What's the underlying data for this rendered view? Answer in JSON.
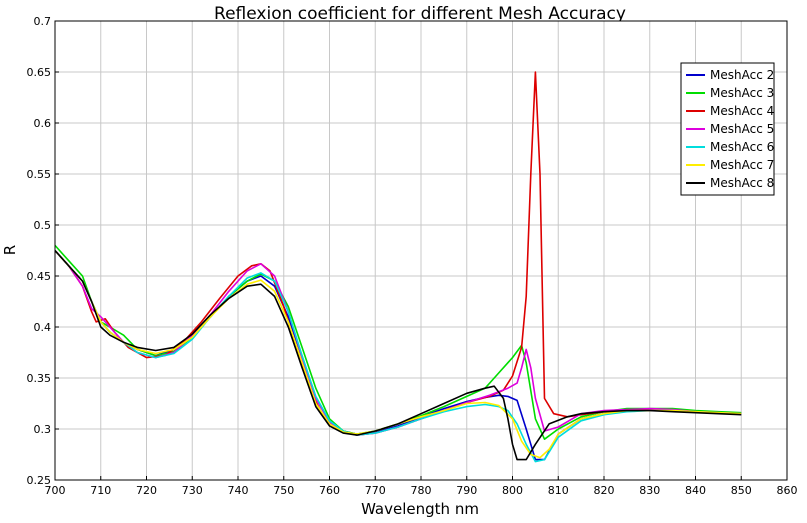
{
  "chart_data": {
    "type": "line",
    "title": "Reflexion coefficient for different Mesh Accuracy",
    "xlabel": "Wavelength nm",
    "ylabel": "R",
    "xlim": [
      700,
      860
    ],
    "ylim": [
      0.25,
      0.7
    ],
    "xticks": [
      "700",
      "710",
      "720",
      "730",
      "740",
      "750",
      "760",
      "770",
      "780",
      "790",
      "800",
      "810",
      "820",
      "830",
      "840",
      "850",
      "860"
    ],
    "yticks": [
      "0.25",
      "0.3",
      "0.35",
      "0.4",
      "0.45",
      "0.5",
      "0.55",
      "0.6",
      "0.65",
      "0.7"
    ],
    "grid": true,
    "legend_position": "top-right",
    "series": [
      {
        "name": "MeshAcc 2",
        "color": "#0000cc",
        "points": [
          [
            700,
            0.475
          ],
          [
            703,
            0.46
          ],
          [
            706,
            0.445
          ],
          [
            708,
            0.425
          ],
          [
            710,
            0.405
          ],
          [
            712,
            0.395
          ],
          [
            715,
            0.385
          ],
          [
            718,
            0.378
          ],
          [
            722,
            0.372
          ],
          [
            726,
            0.378
          ],
          [
            730,
            0.39
          ],
          [
            734,
            0.41
          ],
          [
            738,
            0.43
          ],
          [
            742,
            0.445
          ],
          [
            745,
            0.45
          ],
          [
            748,
            0.44
          ],
          [
            751,
            0.41
          ],
          [
            754,
            0.37
          ],
          [
            757,
            0.33
          ],
          [
            760,
            0.307
          ],
          [
            763,
            0.298
          ],
          [
            766,
            0.295
          ],
          [
            770,
            0.297
          ],
          [
            775,
            0.303
          ],
          [
            780,
            0.312
          ],
          [
            785,
            0.32
          ],
          [
            790,
            0.327
          ],
          [
            794,
            0.331
          ],
          [
            797,
            0.333
          ],
          [
            799,
            0.332
          ],
          [
            801,
            0.328
          ],
          [
            803,
            0.3
          ],
          [
            805,
            0.27
          ],
          [
            807,
            0.27
          ],
          [
            810,
            0.295
          ],
          [
            815,
            0.31
          ],
          [
            820,
            0.315
          ],
          [
            825,
            0.318
          ],
          [
            830,
            0.318
          ],
          [
            835,
            0.318
          ],
          [
            840,
            0.317
          ],
          [
            845,
            0.316
          ],
          [
            850,
            0.315
          ]
        ]
      },
      {
        "name": "MeshAcc 3",
        "color": "#00dd00",
        "points": [
          [
            700,
            0.48
          ],
          [
            703,
            0.465
          ],
          [
            706,
            0.45
          ],
          [
            708,
            0.425
          ],
          [
            710,
            0.405
          ],
          [
            712,
            0.4
          ],
          [
            715,
            0.392
          ],
          [
            718,
            0.378
          ],
          [
            722,
            0.372
          ],
          [
            726,
            0.376
          ],
          [
            730,
            0.39
          ],
          [
            734,
            0.41
          ],
          [
            738,
            0.43
          ],
          [
            742,
            0.445
          ],
          [
            745,
            0.452
          ],
          [
            748,
            0.445
          ],
          [
            751,
            0.42
          ],
          [
            754,
            0.38
          ],
          [
            757,
            0.34
          ],
          [
            760,
            0.31
          ],
          [
            763,
            0.298
          ],
          [
            766,
            0.295
          ],
          [
            770,
            0.298
          ],
          [
            775,
            0.305
          ],
          [
            780,
            0.313
          ],
          [
            785,
            0.322
          ],
          [
            790,
            0.332
          ],
          [
            794,
            0.34
          ],
          [
            797,
            0.355
          ],
          [
            800,
            0.37
          ],
          [
            802,
            0.382
          ],
          [
            803,
            0.365
          ],
          [
            805,
            0.31
          ],
          [
            807,
            0.29
          ],
          [
            810,
            0.3
          ],
          [
            815,
            0.312
          ],
          [
            820,
            0.317
          ],
          [
            825,
            0.32
          ],
          [
            830,
            0.32
          ],
          [
            835,
            0.32
          ],
          [
            840,
            0.318
          ],
          [
            845,
            0.317
          ],
          [
            850,
            0.316
          ]
        ]
      },
      {
        "name": "MeshAcc 4",
        "color": "#dd0000",
        "points": [
          [
            700,
            0.475
          ],
          [
            703,
            0.46
          ],
          [
            706,
            0.44
          ],
          [
            708,
            0.415
          ],
          [
            709,
            0.405
          ],
          [
            711,
            0.408
          ],
          [
            713,
            0.395
          ],
          [
            716,
            0.38
          ],
          [
            720,
            0.37
          ],
          [
            724,
            0.372
          ],
          [
            728,
            0.385
          ],
          [
            732,
            0.405
          ],
          [
            736,
            0.428
          ],
          [
            740,
            0.45
          ],
          [
            743,
            0.46
          ],
          [
            745,
            0.462
          ],
          [
            747,
            0.455
          ],
          [
            750,
            0.42
          ],
          [
            753,
            0.375
          ],
          [
            756,
            0.335
          ],
          [
            759,
            0.31
          ],
          [
            762,
            0.299
          ],
          [
            766,
            0.294
          ],
          [
            770,
            0.296
          ],
          [
            775,
            0.302
          ],
          [
            780,
            0.31
          ],
          [
            785,
            0.318
          ],
          [
            790,
            0.326
          ],
          [
            795,
            0.332
          ],
          [
            798,
            0.338
          ],
          [
            800,
            0.352
          ],
          [
            802,
            0.38
          ],
          [
            803,
            0.43
          ],
          [
            804,
            0.55
          ],
          [
            805,
            0.65
          ],
          [
            806,
            0.55
          ],
          [
            807,
            0.33
          ],
          [
            809,
            0.315
          ],
          [
            812,
            0.312
          ],
          [
            815,
            0.314
          ],
          [
            820,
            0.317
          ],
          [
            825,
            0.318
          ],
          [
            830,
            0.319
          ],
          [
            835,
            0.318
          ],
          [
            840,
            0.317
          ],
          [
            845,
            0.316
          ],
          [
            850,
            0.315
          ]
        ]
      },
      {
        "name": "MeshAcc 5",
        "color": "#dd00dd",
        "points": [
          [
            700,
            0.475
          ],
          [
            703,
            0.46
          ],
          [
            706,
            0.44
          ],
          [
            708,
            0.418
          ],
          [
            710,
            0.41
          ],
          [
            712,
            0.4
          ],
          [
            715,
            0.385
          ],
          [
            718,
            0.375
          ],
          [
            722,
            0.37
          ],
          [
            726,
            0.375
          ],
          [
            730,
            0.392
          ],
          [
            734,
            0.412
          ],
          [
            738,
            0.435
          ],
          [
            742,
            0.455
          ],
          [
            745,
            0.462
          ],
          [
            748,
            0.45
          ],
          [
            751,
            0.415
          ],
          [
            754,
            0.37
          ],
          [
            757,
            0.33
          ],
          [
            760,
            0.307
          ],
          [
            763,
            0.297
          ],
          [
            766,
            0.294
          ],
          [
            770,
            0.296
          ],
          [
            775,
            0.302
          ],
          [
            780,
            0.31
          ],
          [
            785,
            0.318
          ],
          [
            790,
            0.326
          ],
          [
            795,
            0.333
          ],
          [
            799,
            0.34
          ],
          [
            801,
            0.345
          ],
          [
            802,
            0.36
          ],
          [
            803,
            0.378
          ],
          [
            804,
            0.36
          ],
          [
            805,
            0.33
          ],
          [
            807,
            0.298
          ],
          [
            810,
            0.302
          ],
          [
            815,
            0.315
          ],
          [
            820,
            0.318
          ],
          [
            825,
            0.319
          ],
          [
            830,
            0.32
          ],
          [
            835,
            0.319
          ],
          [
            840,
            0.317
          ],
          [
            845,
            0.316
          ],
          [
            850,
            0.315
          ]
        ]
      },
      {
        "name": "MeshAcc 6",
        "color": "#00dddd",
        "points": [
          [
            700,
            0.475
          ],
          [
            703,
            0.46
          ],
          [
            706,
            0.445
          ],
          [
            708,
            0.425
          ],
          [
            710,
            0.405
          ],
          [
            712,
            0.395
          ],
          [
            715,
            0.385
          ],
          [
            718,
            0.375
          ],
          [
            722,
            0.37
          ],
          [
            726,
            0.374
          ],
          [
            730,
            0.388
          ],
          [
            734,
            0.41
          ],
          [
            738,
            0.43
          ],
          [
            742,
            0.448
          ],
          [
            745,
            0.453
          ],
          [
            748,
            0.445
          ],
          [
            751,
            0.415
          ],
          [
            754,
            0.372
          ],
          [
            757,
            0.332
          ],
          [
            760,
            0.308
          ],
          [
            763,
            0.298
          ],
          [
            766,
            0.294
          ],
          [
            770,
            0.296
          ],
          [
            775,
            0.302
          ],
          [
            780,
            0.31
          ],
          [
            785,
            0.317
          ],
          [
            790,
            0.322
          ],
          [
            794,
            0.324
          ],
          [
            797,
            0.322
          ],
          [
            799,
            0.318
          ],
          [
            801,
            0.305
          ],
          [
            803,
            0.285
          ],
          [
            805,
            0.268
          ],
          [
            807,
            0.27
          ],
          [
            810,
            0.292
          ],
          [
            815,
            0.308
          ],
          [
            820,
            0.314
          ],
          [
            825,
            0.317
          ],
          [
            830,
            0.318
          ],
          [
            835,
            0.318
          ],
          [
            840,
            0.317
          ],
          [
            845,
            0.316
          ],
          [
            850,
            0.315
          ]
        ]
      },
      {
        "name": "MeshAcc 7",
        "color": "#ffee00",
        "points": [
          [
            700,
            0.475
          ],
          [
            703,
            0.46
          ],
          [
            706,
            0.445
          ],
          [
            708,
            0.425
          ],
          [
            710,
            0.405
          ],
          [
            712,
            0.395
          ],
          [
            715,
            0.385
          ],
          [
            718,
            0.378
          ],
          [
            722,
            0.374
          ],
          [
            726,
            0.378
          ],
          [
            730,
            0.39
          ],
          [
            734,
            0.41
          ],
          [
            738,
            0.428
          ],
          [
            742,
            0.442
          ],
          [
            745,
            0.446
          ],
          [
            748,
            0.435
          ],
          [
            751,
            0.405
          ],
          [
            754,
            0.365
          ],
          [
            757,
            0.325
          ],
          [
            760,
            0.305
          ],
          [
            763,
            0.297
          ],
          [
            766,
            0.295
          ],
          [
            770,
            0.298
          ],
          [
            775,
            0.305
          ],
          [
            780,
            0.312
          ],
          [
            785,
            0.318
          ],
          [
            790,
            0.325
          ],
          [
            794,
            0.326
          ],
          [
            797,
            0.323
          ],
          [
            800,
            0.31
          ],
          [
            802,
            0.288
          ],
          [
            804,
            0.275
          ],
          [
            806,
            0.272
          ],
          [
            808,
            0.28
          ],
          [
            810,
            0.295
          ],
          [
            815,
            0.31
          ],
          [
            820,
            0.315
          ],
          [
            825,
            0.318
          ],
          [
            830,
            0.318
          ],
          [
            835,
            0.318
          ],
          [
            840,
            0.317
          ],
          [
            845,
            0.316
          ],
          [
            850,
            0.315
          ]
        ]
      },
      {
        "name": "MeshAcc 8",
        "color": "#000000",
        "points": [
          [
            700,
            0.475
          ],
          [
            703,
            0.46
          ],
          [
            706,
            0.445
          ],
          [
            708,
            0.425
          ],
          [
            710,
            0.4
          ],
          [
            712,
            0.392
          ],
          [
            715,
            0.385
          ],
          [
            718,
            0.38
          ],
          [
            722,
            0.377
          ],
          [
            726,
            0.38
          ],
          [
            730,
            0.393
          ],
          [
            734,
            0.412
          ],
          [
            738,
            0.428
          ],
          [
            742,
            0.44
          ],
          [
            745,
            0.442
          ],
          [
            748,
            0.43
          ],
          [
            751,
            0.4
          ],
          [
            754,
            0.36
          ],
          [
            757,
            0.322
          ],
          [
            760,
            0.303
          ],
          [
            763,
            0.296
          ],
          [
            766,
            0.294
          ],
          [
            770,
            0.298
          ],
          [
            775,
            0.305
          ],
          [
            780,
            0.315
          ],
          [
            785,
            0.325
          ],
          [
            790,
            0.335
          ],
          [
            794,
            0.34
          ],
          [
            796,
            0.342
          ],
          [
            798,
            0.33
          ],
          [
            799,
            0.31
          ],
          [
            800,
            0.285
          ],
          [
            801,
            0.27
          ],
          [
            803,
            0.27
          ],
          [
            805,
            0.285
          ],
          [
            808,
            0.305
          ],
          [
            812,
            0.312
          ],
          [
            815,
            0.315
          ],
          [
            820,
            0.317
          ],
          [
            825,
            0.318
          ],
          [
            830,
            0.318
          ],
          [
            835,
            0.317
          ],
          [
            840,
            0.316
          ],
          [
            845,
            0.315
          ],
          [
            850,
            0.314
          ]
        ]
      }
    ]
  }
}
